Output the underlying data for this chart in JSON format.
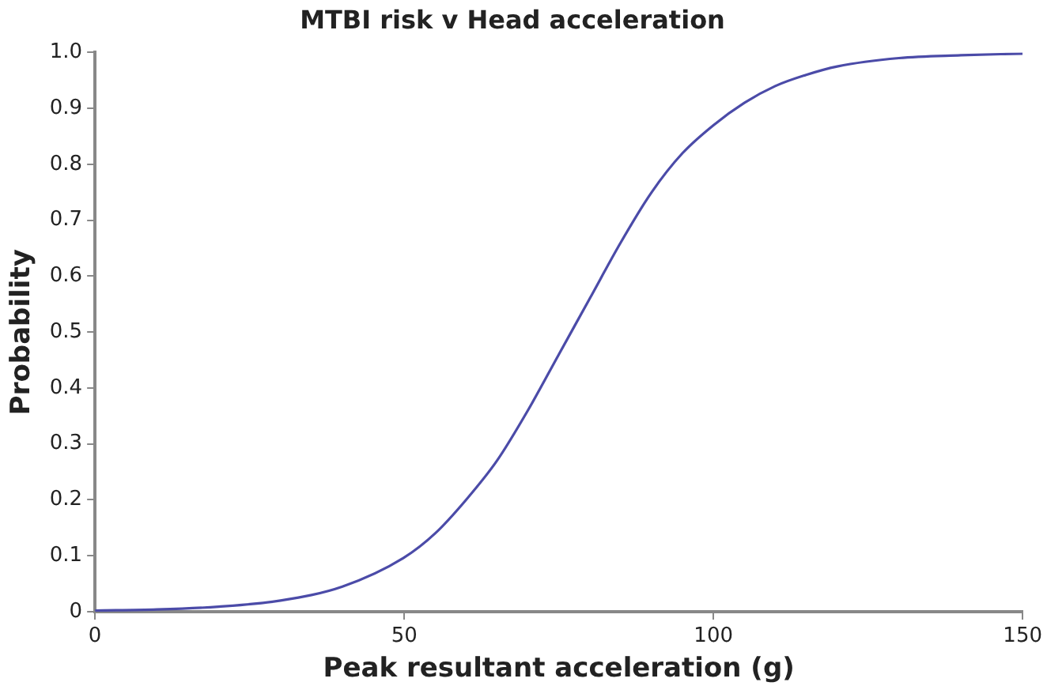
{
  "chart_data": {
    "type": "line",
    "title": "MTBI risk v Head acceleration",
    "xlabel": "Peak resultant acceleration (g)",
    "ylabel": "Probability",
    "x": [
      0,
      10,
      20,
      30,
      40,
      50,
      55,
      60,
      65,
      70,
      75,
      80,
      85,
      90,
      95,
      100,
      105,
      110,
      115,
      120,
      130,
      140,
      150
    ],
    "series": [
      {
        "color": "#4b4ba8",
        "values": [
          0.002,
          0.004,
          0.009,
          0.02,
          0.045,
          0.097,
          0.14,
          0.2,
          0.27,
          0.36,
          0.46,
          0.56,
          0.66,
          0.75,
          0.82,
          0.87,
          0.91,
          0.94,
          0.96,
          0.975,
          0.99,
          0.995,
          0.998
        ]
      }
    ],
    "xlim": [
      0,
      150
    ],
    "xticks": [
      0,
      50,
      100,
      150
    ],
    "ylim": [
      0,
      1
    ],
    "yticks": [
      0,
      {
        "value": 0.1,
        "label": "0.1"
      },
      {
        "value": 0.2,
        "label": "0.2"
      },
      {
        "value": 0.3,
        "label": "0.3"
      },
      {
        "value": 0.4,
        "label": "0.4"
      },
      {
        "value": 0.5,
        "label": "0.5"
      },
      {
        "value": 0.6,
        "label": "0.6"
      },
      {
        "value": 0.7,
        "label": "0.7"
      },
      {
        "value": 0.8,
        "label": "0.8"
      },
      {
        "value": 0.9,
        "label": "0.9"
      },
      {
        "value": 1,
        "label": "1.0"
      }
    ],
    "grid": false,
    "legend": false,
    "marker": "none",
    "line_style": "solid"
  }
}
